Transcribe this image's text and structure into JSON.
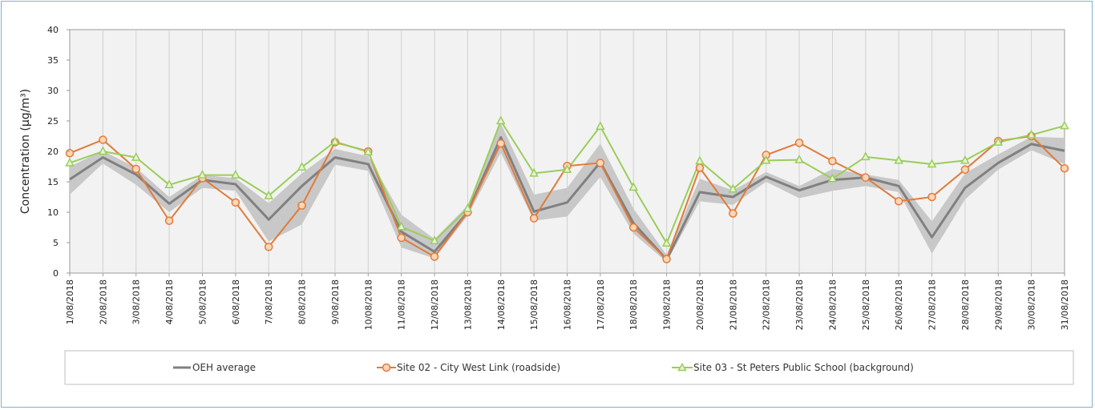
{
  "chart_data": {
    "type": "line",
    "ylabel": "Concentration (µg/m³)",
    "ylim": [
      0,
      40
    ],
    "yticks": [
      0,
      5,
      10,
      15,
      20,
      25,
      30,
      35,
      40
    ],
    "grid": "vertical",
    "legend_placement": "bottom",
    "categories": [
      "1/08/2018",
      "2/08/2018",
      "3/08/2018",
      "4/08/2018",
      "5/08/2018",
      "6/08/2018",
      "7/08/2018",
      "8/08/2018",
      "9/08/2018",
      "10/08/2018",
      "11/08/2018",
      "12/08/2018",
      "13/08/2018",
      "14/08/2018",
      "15/08/2018",
      "16/08/2018",
      "17/08/2018",
      "18/08/2018",
      "19/08/2018",
      "20/08/2018",
      "21/08/2018",
      "22/08/2018",
      "23/08/2018",
      "24/08/2018",
      "25/08/2018",
      "26/08/2018",
      "27/08/2018",
      "28/08/2018",
      "29/08/2018",
      "30/08/2018",
      "31/08/2018"
    ],
    "series": [
      {
        "name": "OEH average",
        "color": "#808080",
        "marker": "none",
        "values": [
          15.4,
          19.0,
          16.2,
          11.4,
          15.3,
          14.6,
          8.8,
          14.3,
          19.0,
          17.9,
          6.8,
          3.5,
          10.0,
          22.3,
          10.1,
          11.6,
          18.2,
          8.2,
          2.2,
          13.3,
          12.5,
          15.8,
          13.6,
          15.3,
          15.7,
          14.3,
          5.9,
          14.0,
          18.1,
          21.2,
          20.1
        ],
        "band_low": [
          12.9,
          18.0,
          14.5,
          10.0,
          14.0,
          13.5,
          5.2,
          8.0,
          17.8,
          16.8,
          4.2,
          2.4,
          9.4,
          19.8,
          8.6,
          9.3,
          15.8,
          6.5,
          1.8,
          11.8,
          11.2,
          15.0,
          12.3,
          13.5,
          14.3,
          13.3,
          3.2,
          12.1,
          17.0,
          20.2,
          17.9
        ],
        "band_high": [
          17.5,
          20.1,
          17.3,
          12.5,
          16.1,
          15.6,
          11.5,
          16.4,
          20.4,
          19.2,
          9.6,
          5.6,
          11.1,
          24.6,
          12.9,
          14.0,
          21.3,
          10.6,
          3.0,
          15.5,
          13.6,
          16.6,
          14.3,
          17.1,
          16.2,
          15.3,
          8.5,
          16.4,
          19.5,
          22.4,
          22.2
        ]
      },
      {
        "name": "Site 02 - City West Link (roadside)",
        "color": "#e07b3a",
        "marker": "circle",
        "values": [
          19.7,
          21.9,
          17.1,
          8.6,
          15.6,
          11.6,
          4.3,
          11.1,
          21.5,
          20.0,
          5.8,
          2.7,
          10.0,
          21.3,
          9.0,
          17.6,
          18.1,
          7.5,
          2.3,
          17.3,
          9.8,
          19.4,
          21.4,
          18.4,
          15.7,
          11.8,
          12.5,
          17.0,
          21.7,
          22.5,
          17.2
        ]
      },
      {
        "name": "Site 03 - St Peters Public School (background)",
        "color": "#9acd5a",
        "marker": "triangle",
        "values": [
          18.1,
          20.0,
          19.0,
          14.5,
          16.1,
          16.1,
          12.7,
          17.4,
          21.6,
          19.9,
          7.6,
          5.3,
          10.6,
          25.0,
          16.4,
          17.0,
          24.1,
          14.1,
          4.9,
          18.4,
          13.8,
          18.5,
          18.6,
          15.5,
          19.1,
          18.5,
          17.9,
          18.5,
          21.5,
          22.7,
          24.2
        ]
      }
    ]
  }
}
